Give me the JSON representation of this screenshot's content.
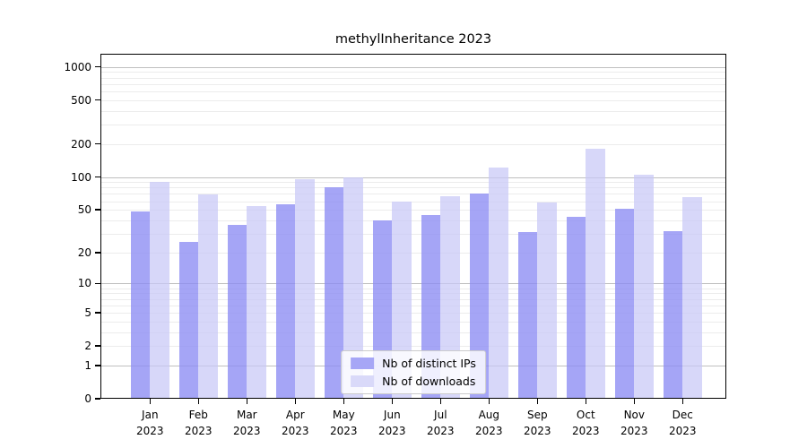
{
  "chart_data": {
    "type": "bar",
    "title": "methylInheritance 2023",
    "year_label": "2023",
    "months": [
      "Jan",
      "Feb",
      "Mar",
      "Apr",
      "May",
      "Jun",
      "Jul",
      "Aug",
      "Sep",
      "Oct",
      "Nov",
      "Dec"
    ],
    "series": [
      {
        "name": "Nb of distinct IPs",
        "color": "#a6a6f6",
        "fill": "rgba(140,140,244,0.78)",
        "values": [
          48,
          25,
          36,
          56,
          81,
          40,
          45,
          70,
          31,
          43,
          51,
          32
        ]
      },
      {
        "name": "Nb of downloads",
        "color": "#d9d9f9",
        "fill": "rgba(200,200,246,0.72)",
        "values": [
          90,
          69,
          54,
          95,
          100,
          60,
          67,
          123,
          59,
          180,
          104,
          65
        ]
      }
    ],
    "yticks": [
      0,
      1,
      2,
      5,
      10,
      20,
      50,
      100,
      200,
      500,
      1000
    ],
    "yscale": "log1p",
    "ylim": [
      0,
      1300
    ],
    "grid": true,
    "legend_position": "lower center",
    "colors": {
      "major_grid": "#bfbfbf",
      "minor_grid": "#ececec",
      "axis": "#000000",
      "background": "#ffffff"
    }
  }
}
